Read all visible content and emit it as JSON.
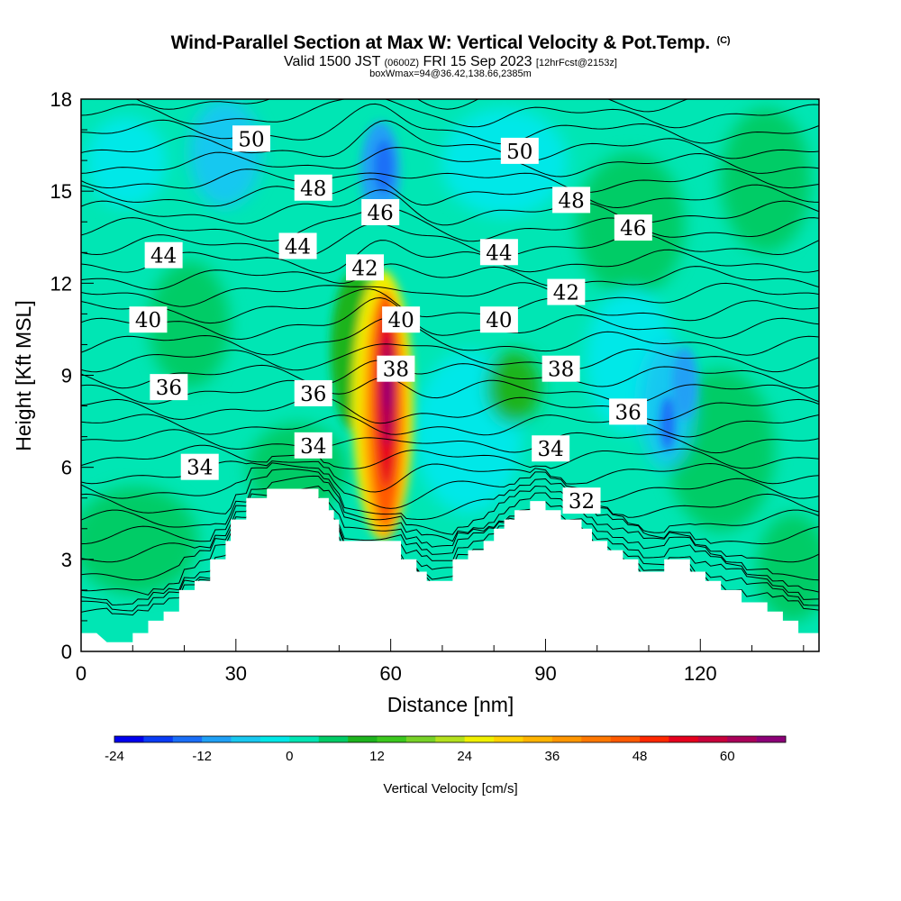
{
  "header": {
    "title": "Wind-Parallel Section at Max W: Vertical Velocity & Pot.Temp.",
    "copyright": "(C)",
    "valid_prefix": "Valid 1500 JST",
    "valid_utc": "(0600Z)",
    "valid_date": "FRI 15 Sep 2023",
    "forecast_info": "[12hrFcst@2153z]",
    "box_info": "boxWmax=94@36.42,138.66,2385m"
  },
  "chart_data": {
    "type": "heatmap",
    "xlabel": "Distance [nm]",
    "ylabel": "Height [Kft MSL]",
    "xlim": [
      0,
      143
    ],
    "ylim": [
      0,
      18
    ],
    "xticks": [
      0,
      30,
      60,
      90,
      120
    ],
    "yticks": [
      0,
      3,
      6,
      9,
      12,
      15,
      18
    ],
    "colorbar": {
      "label": "Vertical Velocity [cm/s]",
      "min": -24,
      "max": 68,
      "step": 4,
      "tick_labels": [
        -24,
        -12,
        0,
        12,
        24,
        36,
        48,
        60
      ],
      "colors": [
        "#0000ee",
        "#0a3cf5",
        "#1a6ef7",
        "#20a0f5",
        "#19c8f0",
        "#00e8e8",
        "#00e6b4",
        "#00cc66",
        "#1eb41e",
        "#3cc81e",
        "#78d228",
        "#b4e11e",
        "#f0f000",
        "#ffd200",
        "#ffb400",
        "#ff9600",
        "#ff7800",
        "#ff5a00",
        "#ff2800",
        "#e6001e",
        "#c8003c",
        "#aa005a",
        "#8c0078"
      ]
    },
    "terrain_profile_kft": [
      [
        0,
        0.6
      ],
      [
        3,
        0.6
      ],
      [
        5,
        0.3
      ],
      [
        10,
        0.3
      ],
      [
        10,
        0.6
      ],
      [
        13,
        0.6
      ],
      [
        13,
        1.0
      ],
      [
        16,
        1.0
      ],
      [
        16,
        1.3
      ],
      [
        19,
        1.3
      ],
      [
        19,
        2.0
      ],
      [
        22,
        2.0
      ],
      [
        22,
        2.3
      ],
      [
        25,
        2.3
      ],
      [
        25,
        3.0
      ],
      [
        28,
        3.0
      ],
      [
        28,
        3.6
      ],
      [
        29,
        3.6
      ],
      [
        29,
        4.3
      ],
      [
        32,
        4.3
      ],
      [
        32,
        5.0
      ],
      [
        36,
        5.0
      ],
      [
        36,
        5.3
      ],
      [
        46,
        5.3
      ],
      [
        46,
        5.0
      ],
      [
        48,
        5.0
      ],
      [
        48,
        4.6
      ],
      [
        49,
        4.6
      ],
      [
        49,
        4.3
      ],
      [
        50,
        4.3
      ],
      [
        50,
        3.6
      ],
      [
        57,
        3.6
      ],
      [
        57,
        3.6
      ],
      [
        62,
        3.6
      ],
      [
        62,
        3.0
      ],
      [
        65,
        3.0
      ],
      [
        65,
        2.6
      ],
      [
        67,
        2.6
      ],
      [
        67,
        2.3
      ],
      [
        72,
        2.3
      ],
      [
        72,
        3.0
      ],
      [
        75,
        3.0
      ],
      [
        75,
        3.3
      ],
      [
        78,
        3.3
      ],
      [
        78,
        3.6
      ],
      [
        80,
        3.6
      ],
      [
        80,
        4.0
      ],
      [
        82,
        4.0
      ],
      [
        82,
        4.3
      ],
      [
        84,
        4.3
      ],
      [
        84,
        4.6
      ],
      [
        87,
        4.6
      ],
      [
        87,
        4.9
      ],
      [
        90,
        4.9
      ],
      [
        90,
        4.6
      ],
      [
        93,
        4.6
      ],
      [
        93,
        4.3
      ],
      [
        97,
        4.3
      ],
      [
        97,
        4.0
      ],
      [
        99,
        4.0
      ],
      [
        99,
        3.6
      ],
      [
        102,
        3.6
      ],
      [
        102,
        3.3
      ],
      [
        105,
        3.3
      ],
      [
        105,
        3.0
      ],
      [
        108,
        3.0
      ],
      [
        108,
        2.6
      ],
      [
        113,
        2.6
      ],
      [
        113,
        3.0
      ],
      [
        118,
        3.0
      ],
      [
        118,
        2.6
      ],
      [
        121,
        2.6
      ],
      [
        121,
        2.3
      ],
      [
        124,
        2.3
      ],
      [
        124,
        2.0
      ],
      [
        128,
        2.0
      ],
      [
        128,
        1.6
      ],
      [
        133,
        1.6
      ],
      [
        133,
        1.3
      ],
      [
        136,
        1.3
      ],
      [
        136,
        1.0
      ],
      [
        139,
        1.0
      ],
      [
        139,
        0.6
      ],
      [
        143,
        0.6
      ]
    ],
    "theta_contour_labels": [
      {
        "text": "50",
        "x": 33,
        "y": 16.7
      },
      {
        "text": "50",
        "x": 85,
        "y": 16.3
      },
      {
        "text": "48",
        "x": 45,
        "y": 15.1
      },
      {
        "text": "48",
        "x": 95,
        "y": 14.7
      },
      {
        "text": "46",
        "x": 58,
        "y": 14.3
      },
      {
        "text": "46",
        "x": 107,
        "y": 13.8
      },
      {
        "text": "44",
        "x": 16,
        "y": 12.9
      },
      {
        "text": "44",
        "x": 42,
        "y": 13.2
      },
      {
        "text": "44",
        "x": 81,
        "y": 13.0
      },
      {
        "text": "42",
        "x": 55,
        "y": 12.5
      },
      {
        "text": "42",
        "x": 94,
        "y": 11.7
      },
      {
        "text": "40",
        "x": 13,
        "y": 10.8
      },
      {
        "text": "40",
        "x": 62,
        "y": 10.8
      },
      {
        "text": "40",
        "x": 81,
        "y": 10.8
      },
      {
        "text": "38",
        "x": 61,
        "y": 9.2
      },
      {
        "text": "38",
        "x": 93,
        "y": 9.2
      },
      {
        "text": "36",
        "x": 17,
        "y": 8.6
      },
      {
        "text": "36",
        "x": 45,
        "y": 8.4
      },
      {
        "text": "36",
        "x": 106,
        "y": 7.8
      },
      {
        "text": "34",
        "x": 23,
        "y": 6.0
      },
      {
        "text": "34",
        "x": 45,
        "y": 6.7
      },
      {
        "text": "34",
        "x": 91,
        "y": 6.6
      },
      {
        "text": "32",
        "x": 97,
        "y": 4.9
      }
    ]
  }
}
